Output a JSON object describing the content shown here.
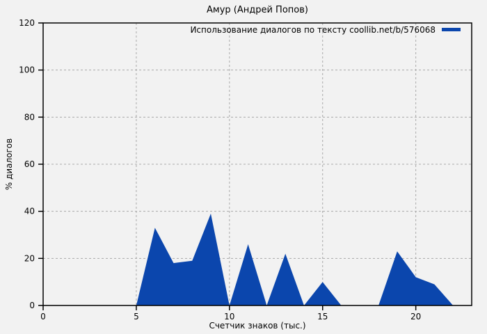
{
  "chart_data": {
    "type": "area",
    "title": "Амур (Андрей Попов)",
    "legend": "Использование диалогов по тексту coollib.net/b/576068",
    "xlabel": "Счетчик знаков (тыс.)",
    "ylabel": "% диалогов",
    "xlim": [
      0,
      23
    ],
    "ylim": [
      0,
      120
    ],
    "xticks": [
      0,
      5,
      10,
      15,
      20
    ],
    "yticks": [
      0,
      20,
      40,
      60,
      80,
      100,
      120
    ],
    "grid": "dashed",
    "legend_position": "top-right-inside",
    "x": [
      5,
      6,
      7,
      8,
      9,
      10,
      11,
      12,
      13,
      14,
      15,
      16,
      17,
      18,
      19,
      20,
      21,
      22
    ],
    "y": [
      0,
      33,
      18,
      19,
      39,
      0,
      26,
      0,
      22,
      0,
      10,
      0,
      0,
      0,
      23,
      12,
      9,
      0
    ],
    "series_color": "#0b46ad",
    "background_color": "#f2f2f2",
    "grid_color": "#a9a9a9",
    "frame_color": "#000000"
  }
}
